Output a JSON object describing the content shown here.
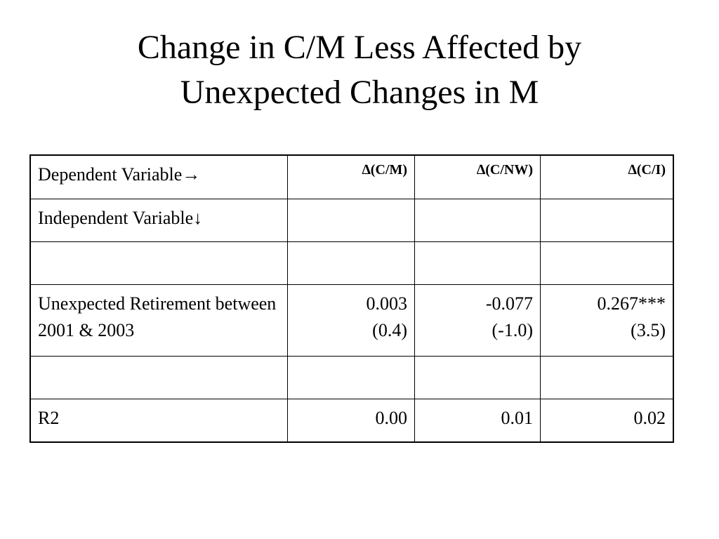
{
  "title": [
    "Change in C/M Less Affected by",
    "Unexpected Changes in M"
  ],
  "table": {
    "rows": [
      [
        "Dependent Variable→",
        "∆(C/M)",
        "∆(C/NW)",
        "∆(C/I)"
      ],
      [
        "Independent Variable↓",
        null,
        null,
        null
      ],
      [
        null,
        null,
        null,
        null
      ],
      [
        "Unexpected Retirement between 2001 & 2003",
        {
          "estimate": "0.003",
          "t_stat": "(0.4)"
        },
        {
          "estimate": "-0.077",
          "t_stat": "(-1.0)"
        },
        {
          "estimate": "0.267***",
          "t_stat": "(3.5)"
        }
      ],
      [
        null,
        null,
        null,
        null
      ],
      [
        "R2",
        "0.00",
        "0.01",
        "0.02"
      ]
    ]
  }
}
